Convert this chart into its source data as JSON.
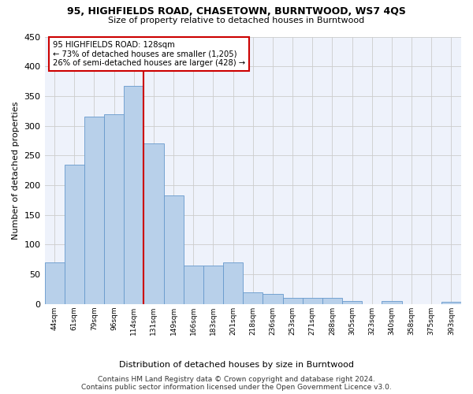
{
  "title": "95, HIGHFIELDS ROAD, CHASETOWN, BURNTWOOD, WS7 4QS",
  "subtitle": "Size of property relative to detached houses in Burntwood",
  "xlabel": "Distribution of detached houses by size in Burntwood",
  "ylabel": "Number of detached properties",
  "categories": [
    "44sqm",
    "61sqm",
    "79sqm",
    "96sqm",
    "114sqm",
    "131sqm",
    "149sqm",
    "166sqm",
    "183sqm",
    "201sqm",
    "218sqm",
    "236sqm",
    "253sqm",
    "271sqm",
    "288sqm",
    "305sqm",
    "323sqm",
    "340sqm",
    "358sqm",
    "375sqm",
    "393sqm"
  ],
  "values": [
    70,
    235,
    315,
    320,
    367,
    270,
    183,
    65,
    65,
    70,
    20,
    17,
    10,
    10,
    10,
    5,
    0,
    5,
    0,
    0,
    4
  ],
  "bar_color": "#b8d0ea",
  "bar_edge_color": "#6699cc",
  "annotation_line1": "95 HIGHFIELDS ROAD: 128sqm",
  "annotation_line2": "← 73% of detached houses are smaller (1,205)",
  "annotation_line3": "26% of semi-detached houses are larger (428) →",
  "annotation_box_facecolor": "#ffffff",
  "annotation_box_edgecolor": "#cc0000",
  "vline_color": "#cc0000",
  "vline_pos": 4.5,
  "ylim": [
    0,
    450
  ],
  "yticks": [
    0,
    50,
    100,
    150,
    200,
    250,
    300,
    350,
    400,
    450
  ],
  "footer1": "Contains HM Land Registry data © Crown copyright and database right 2024.",
  "footer2": "Contains public sector information licensed under the Open Government Licence v3.0.",
  "grid_color": "#cccccc",
  "bg_color": "#eef2fb"
}
